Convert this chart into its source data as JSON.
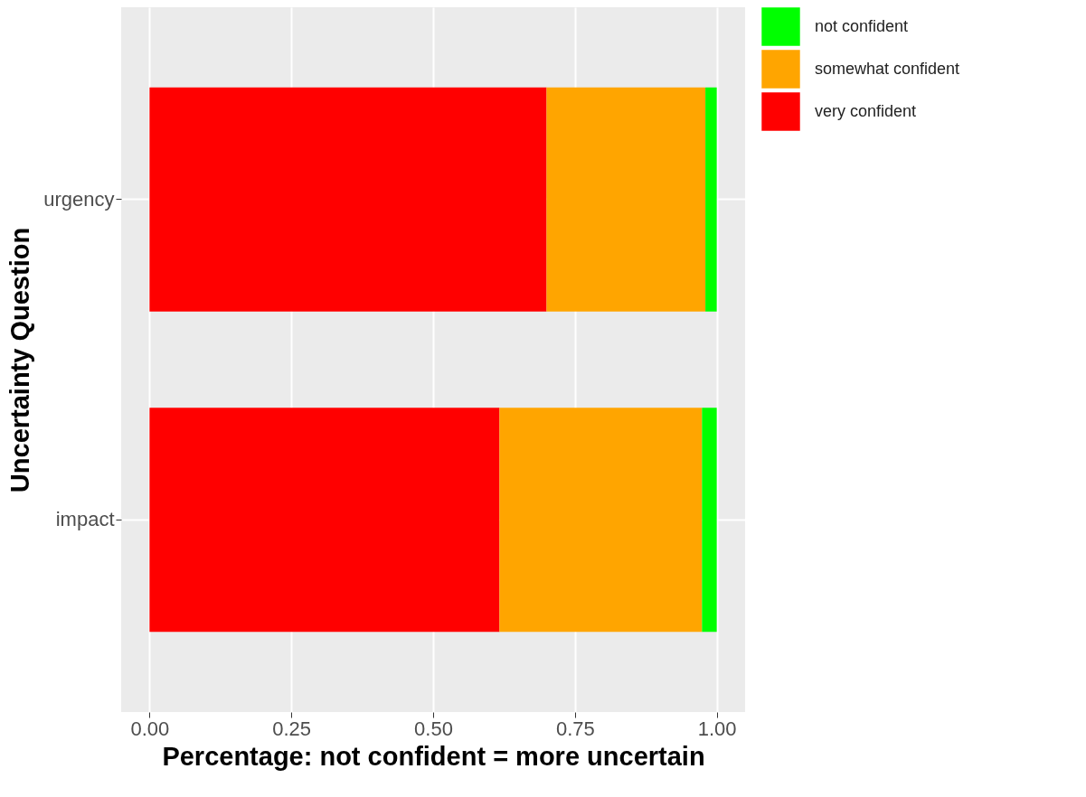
{
  "chart_data": {
    "type": "bar",
    "orientation": "horizontal",
    "stacked": true,
    "xlabel": "Percentage: not confident = more uncertain",
    "ylabel": "Uncertainty Question",
    "categories": [
      "urgency",
      "impact"
    ],
    "series": [
      {
        "name": "very confident",
        "color": "#ff0000",
        "values": [
          0.7,
          0.617
        ]
      },
      {
        "name": "somewhat confident",
        "color": "#ffa500",
        "values": [
          0.28,
          0.357
        ]
      },
      {
        "name": "not confident",
        "color": "#00ff00",
        "values": [
          0.02,
          0.026
        ]
      }
    ],
    "xlim": [
      -0.05,
      1.05
    ],
    "xticks": [
      {
        "value": 0,
        "label": "0.00"
      },
      {
        "value": 0.25,
        "label": "0.25"
      },
      {
        "value": 0.5,
        "label": "0.50"
      },
      {
        "value": 0.75,
        "label": "0.75"
      },
      {
        "value": 1,
        "label": "1.00"
      }
    ],
    "grid": true,
    "legend": "right"
  }
}
